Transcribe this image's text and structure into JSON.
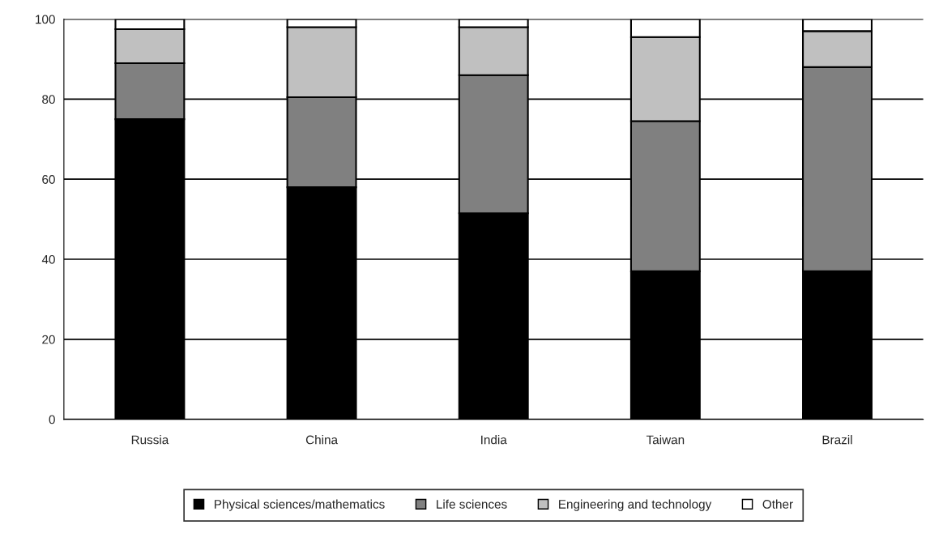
{
  "chart_data": {
    "type": "bar",
    "stacked": true,
    "categories": [
      "Russia",
      "China",
      "India",
      "Taiwan",
      "Brazil"
    ],
    "series": [
      {
        "name": "Physical sciences/mathematics",
        "color": "#000000",
        "values": [
          75,
          58,
          51.5,
          37,
          37
        ]
      },
      {
        "name": "Life sciences",
        "color": "#808080",
        "values": [
          14,
          22.5,
          34.5,
          37.5,
          51
        ]
      },
      {
        "name": "Engineering and technology",
        "color": "#c0c0c0",
        "values": [
          8.5,
          17.5,
          12,
          21,
          9
        ]
      },
      {
        "name": "Other",
        "color": "#ffffff",
        "values": [
          2.5,
          2,
          2,
          4.5,
          3
        ]
      }
    ],
    "ylim": [
      0,
      100
    ],
    "yticks": [
      0,
      20,
      40,
      60,
      80,
      100
    ],
    "grid": "y",
    "legend": "bottom"
  }
}
